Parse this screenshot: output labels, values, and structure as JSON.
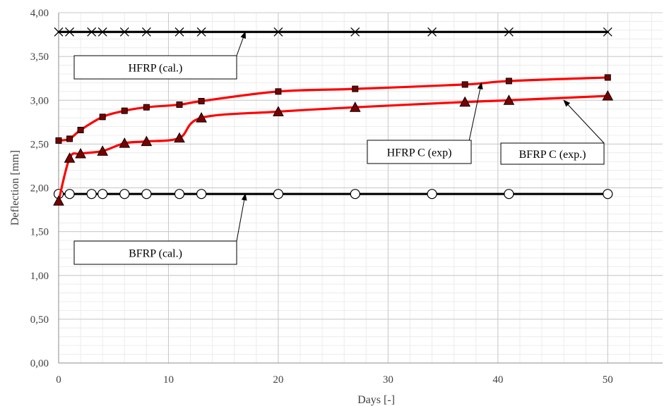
{
  "chart_data": {
    "type": "line",
    "title": "",
    "xlabel": "Days [-]",
    "ylabel": "Deflection [mm]",
    "xlim": [
      0,
      55
    ],
    "ylim": [
      0,
      4
    ],
    "x_ticks": [
      "0",
      "10",
      "20",
      "30",
      "40",
      "50"
    ],
    "y_ticks": [
      "0,00",
      "0,50",
      "1,00",
      "1,50",
      "2,00",
      "2,50",
      "3,00",
      "3,50",
      "4,00"
    ],
    "grid": true,
    "series": [
      {
        "name": "HFRP (cal.)",
        "marker": "x",
        "color": "#000000",
        "x": [
          0,
          1,
          3,
          4,
          6,
          8,
          11,
          13,
          20,
          27,
          34,
          41,
          50
        ],
        "y": [
          3.78,
          3.78,
          3.78,
          3.78,
          3.78,
          3.78,
          3.78,
          3.78,
          3.78,
          3.78,
          3.78,
          3.78,
          3.78
        ]
      },
      {
        "name": "BFRP (cal.)",
        "marker": "circle",
        "color": "#000000",
        "x": [
          0,
          1,
          3,
          4,
          6,
          8,
          11,
          13,
          20,
          27,
          34,
          41,
          50
        ],
        "y": [
          1.93,
          1.93,
          1.93,
          1.93,
          1.93,
          1.93,
          1.93,
          1.93,
          1.93,
          1.93,
          1.93,
          1.93,
          1.93
        ]
      },
      {
        "name": "HFRP C (exp)",
        "marker": "square",
        "color": "#ff0000",
        "x": [
          0,
          1,
          2,
          4,
          6,
          8,
          11,
          13,
          20,
          27,
          37,
          41,
          50
        ],
        "y": [
          2.54,
          2.56,
          2.66,
          2.81,
          2.88,
          2.92,
          2.95,
          2.99,
          3.1,
          3.13,
          3.18,
          3.22,
          3.26
        ]
      },
      {
        "name": "BFRP C (exp.)",
        "marker": "triangle",
        "color": "#ff0000",
        "x": [
          0,
          1,
          2,
          4,
          6,
          8,
          11,
          13,
          20,
          27,
          37,
          41,
          50
        ],
        "y": [
          1.85,
          2.34,
          2.39,
          2.42,
          2.51,
          2.53,
          2.57,
          2.8,
          2.87,
          2.92,
          2.98,
          3.0,
          3.05
        ]
      }
    ],
    "annotations": [
      {
        "text": "HFRP (cal.)",
        "points_to": {
          "x": 17,
          "y": 3.78
        }
      },
      {
        "text": "BFRP (cal.)",
        "points_to": {
          "x": 17,
          "y": 1.93
        }
      },
      {
        "text": "HFRP C (exp)",
        "points_to": {
          "x": 38.5,
          "y": 3.2
        }
      },
      {
        "text": "BFRP C (exp.)",
        "points_to": {
          "x": 46,
          "y": 3.0
        }
      }
    ]
  }
}
